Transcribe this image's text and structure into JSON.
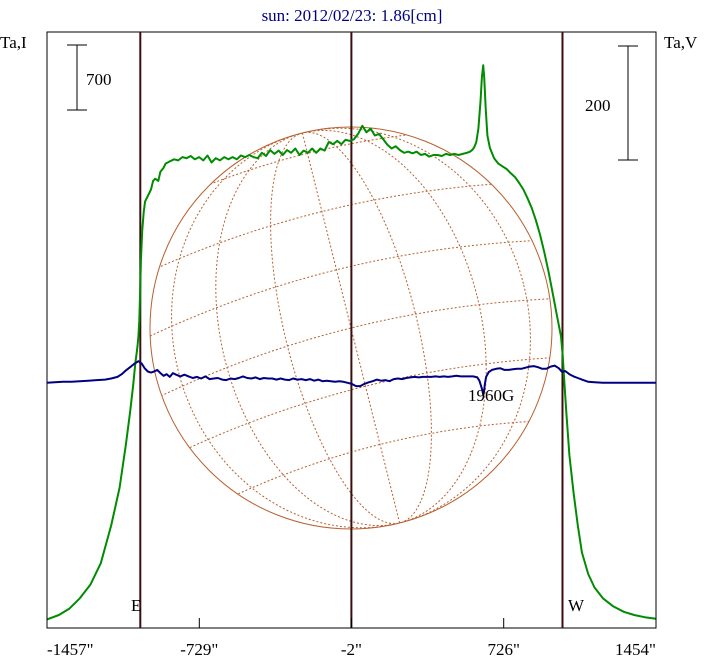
{
  "chart_data": {
    "type": "line",
    "title": "sun: 2012/02/23: 1.86[cm]",
    "left_axis_label": "Ta,I",
    "right_axis_label": "Ta,V",
    "xlim": [
      -1457,
      1454
    ],
    "x_ticks": [
      -1457,
      -729,
      -2,
      726,
      1454
    ],
    "x_tick_labels": [
      "-1457\"",
      "-729\"",
      "-2\"",
      "726\"",
      "1454\""
    ],
    "limb_lines_x": [
      -1011,
      -2,
      1007
    ],
    "limb_labels": [
      "E",
      "W"
    ],
    "scale_bars": [
      {
        "label": "700",
        "side": "left"
      },
      {
        "label": "200",
        "side": "right"
      }
    ],
    "annotations": [
      {
        "text": "1960G",
        "x": 726
      }
    ],
    "colors": {
      "intensity": "#008c00",
      "polarization": "#000080",
      "limb_line": "#3a0e0e",
      "disk": "#b86030",
      "title": "#000080",
      "axis": "#000000"
    },
    "series": [
      {
        "id": "I",
        "points": [
          [
            -1457,
            16
          ],
          [
            -1400,
            24
          ],
          [
            -1350,
            36
          ],
          [
            -1300,
            55
          ],
          [
            -1250,
            80
          ],
          [
            -1200,
            120
          ],
          [
            -1150,
            190
          ],
          [
            -1110,
            260
          ],
          [
            -1080,
            340
          ],
          [
            -1060,
            400
          ],
          [
            -1045,
            450
          ],
          [
            -1035,
            490
          ],
          [
            -1028,
            510
          ],
          [
            -1024,
            524
          ],
          [
            -1020,
            540
          ],
          [
            -1016,
            570
          ],
          [
            -1012,
            620
          ],
          [
            -1008,
            680
          ],
          [
            -1002,
            735
          ],
          [
            -995,
            770
          ],
          [
            -988,
            790
          ],
          [
            -975,
            800
          ],
          [
            -960,
            812
          ],
          [
            -950,
            828
          ],
          [
            -940,
            832
          ],
          [
            -925,
            828
          ],
          [
            -915,
            845
          ],
          [
            -900,
            852
          ],
          [
            -890,
            860
          ],
          [
            -870,
            864
          ],
          [
            -850,
            868
          ],
          [
            -830,
            866
          ],
          [
            -810,
            872
          ],
          [
            -790,
            870
          ],
          [
            -770,
            874
          ],
          [
            -750,
            868
          ],
          [
            -730,
            872
          ],
          [
            -710,
            866
          ],
          [
            -690,
            875
          ],
          [
            -670,
            862
          ],
          [
            -650,
            870
          ],
          [
            -630,
            866
          ],
          [
            -610,
            872
          ],
          [
            -590,
            868
          ],
          [
            -570,
            872
          ],
          [
            -550,
            868
          ],
          [
            -530,
            875
          ],
          [
            -510,
            872
          ],
          [
            -490,
            876
          ],
          [
            -470,
            872
          ],
          [
            -450,
            870
          ],
          [
            -430,
            880
          ],
          [
            -410,
            874
          ],
          [
            -390,
            885
          ],
          [
            -370,
            878
          ],
          [
            -350,
            884
          ],
          [
            -330,
            876
          ],
          [
            -310,
            885
          ],
          [
            -290,
            880
          ],
          [
            -270,
            888
          ],
          [
            -250,
            876
          ],
          [
            -230,
            884
          ],
          [
            -210,
            880
          ],
          [
            -190,
            888
          ],
          [
            -170,
            880
          ],
          [
            -150,
            888
          ],
          [
            -130,
            884
          ],
          [
            -110,
            900
          ],
          [
            -90,
            896
          ],
          [
            -70,
            902
          ],
          [
            -50,
            896
          ],
          [
            -30,
            904
          ],
          [
            -10,
            902
          ],
          [
            10,
            905
          ],
          [
            30,
            915
          ],
          [
            50,
            930
          ],
          [
            70,
            918
          ],
          [
            90,
            925
          ],
          [
            110,
            912
          ],
          [
            130,
            915
          ],
          [
            150,
            905
          ],
          [
            170,
            895
          ],
          [
            190,
            888
          ],
          [
            210,
            892
          ],
          [
            230,
            885
          ],
          [
            250,
            880
          ],
          [
            270,
            882
          ],
          [
            290,
            879
          ],
          [
            310,
            882
          ],
          [
            330,
            876
          ],
          [
            350,
            878
          ],
          [
            370,
            873
          ],
          [
            390,
            876
          ],
          [
            410,
            876
          ],
          [
            430,
            874
          ],
          [
            450,
            878
          ],
          [
            470,
            876
          ],
          [
            490,
            878
          ],
          [
            510,
            876
          ],
          [
            530,
            878
          ],
          [
            550,
            880
          ],
          [
            565,
            882
          ],
          [
            575,
            885
          ],
          [
            585,
            890
          ],
          [
            595,
            900
          ],
          [
            605,
            925
          ],
          [
            615,
            975
          ],
          [
            622,
            1020
          ],
          [
            628,
            1042
          ],
          [
            633,
            1020
          ],
          [
            640,
            962
          ],
          [
            648,
            912
          ],
          [
            660,
            889
          ],
          [
            680,
            870
          ],
          [
            700,
            860
          ],
          [
            720,
            855
          ],
          [
            740,
            850
          ],
          [
            760,
            842
          ],
          [
            780,
            835
          ],
          [
            800,
            824
          ],
          [
            820,
            812
          ],
          [
            840,
            796
          ],
          [
            860,
            778
          ],
          [
            880,
            755
          ],
          [
            900,
            728
          ],
          [
            920,
            696
          ],
          [
            940,
            660
          ],
          [
            960,
            620
          ],
          [
            980,
            580
          ],
          [
            1000,
            540
          ],
          [
            1008,
            505
          ],
          [
            1015,
            460
          ],
          [
            1025,
            400
          ],
          [
            1040,
            320
          ],
          [
            1060,
            250
          ],
          [
            1080,
            190
          ],
          [
            1100,
            140
          ],
          [
            1130,
            100
          ],
          [
            1160,
            75
          ],
          [
            1200,
            55
          ],
          [
            1250,
            40
          ],
          [
            1300,
            30
          ],
          [
            1350,
            24
          ],
          [
            1400,
            20
          ],
          [
            1454,
            17
          ]
        ]
      },
      {
        "id": "V",
        "points": [
          [
            -1457,
            454
          ],
          [
            -1420,
            455
          ],
          [
            -1380,
            456
          ],
          [
            -1340,
            456
          ],
          [
            -1300,
            457
          ],
          [
            -1260,
            458
          ],
          [
            -1220,
            459
          ],
          [
            -1180,
            460
          ],
          [
            -1150,
            462
          ],
          [
            -1120,
            465
          ],
          [
            -1100,
            470
          ],
          [
            -1080,
            477
          ],
          [
            -1060,
            483
          ],
          [
            -1040,
            489
          ],
          [
            -1020,
            494
          ],
          [
            -1005,
            490
          ],
          [
            -990,
            481
          ],
          [
            -975,
            475
          ],
          [
            -960,
            473
          ],
          [
            -945,
            475
          ],
          [
            -930,
            478
          ],
          [
            -915,
            472
          ],
          [
            -900,
            467
          ],
          [
            -885,
            470
          ],
          [
            -870,
            465
          ],
          [
            -855,
            472
          ],
          [
            -840,
            469
          ],
          [
            -820,
            466
          ],
          [
            -800,
            469
          ],
          [
            -780,
            466
          ],
          [
            -760,
            463
          ],
          [
            -740,
            465
          ],
          [
            -720,
            462
          ],
          [
            -700,
            466
          ],
          [
            -680,
            461
          ],
          [
            -660,
            462
          ],
          [
            -640,
            463
          ],
          [
            -620,
            460
          ],
          [
            -600,
            459
          ],
          [
            -580,
            462
          ],
          [
            -560,
            461
          ],
          [
            -540,
            463
          ],
          [
            -520,
            466
          ],
          [
            -500,
            463
          ],
          [
            -480,
            462
          ],
          [
            -460,
            464
          ],
          [
            -440,
            461
          ],
          [
            -420,
            463
          ],
          [
            -400,
            462
          ],
          [
            -380,
            462
          ],
          [
            -360,
            460
          ],
          [
            -340,
            462
          ],
          [
            -320,
            460
          ],
          [
            -300,
            459
          ],
          [
            -280,
            462
          ],
          [
            -260,
            460
          ],
          [
            -240,
            461
          ],
          [
            -220,
            459
          ],
          [
            -200,
            461
          ],
          [
            -180,
            458
          ],
          [
            -160,
            460
          ],
          [
            -140,
            457
          ],
          [
            -120,
            458
          ],
          [
            -100,
            457
          ],
          [
            -80,
            456
          ],
          [
            -60,
            457
          ],
          [
            -40,
            456
          ],
          [
            -20,
            454
          ],
          [
            0,
            452
          ],
          [
            20,
            448
          ],
          [
            40,
            448
          ],
          [
            60,
            452
          ],
          [
            80,
            455
          ],
          [
            100,
            457
          ],
          [
            120,
            460
          ],
          [
            140,
            458
          ],
          [
            160,
            459
          ],
          [
            180,
            457
          ],
          [
            200,
            461
          ],
          [
            220,
            462
          ],
          [
            240,
            461
          ],
          [
            260,
            463
          ],
          [
            280,
            464
          ],
          [
            300,
            465
          ],
          [
            320,
            464
          ],
          [
            340,
            465
          ],
          [
            360,
            465
          ],
          [
            380,
            465
          ],
          [
            400,
            466
          ],
          [
            420,
            465
          ],
          [
            440,
            466
          ],
          [
            460,
            465
          ],
          [
            480,
            466
          ],
          [
            500,
            467
          ],
          [
            520,
            466
          ],
          [
            540,
            466
          ],
          [
            560,
            466
          ],
          [
            580,
            466
          ],
          [
            600,
            464
          ],
          [
            610,
            458
          ],
          [
            618,
            448
          ],
          [
            624,
            440
          ],
          [
            628,
            432
          ],
          [
            632,
            438
          ],
          [
            636,
            452
          ],
          [
            642,
            465
          ],
          [
            655,
            474
          ],
          [
            670,
            478
          ],
          [
            690,
            480
          ],
          [
            710,
            481
          ],
          [
            730,
            478
          ],
          [
            750,
            478
          ],
          [
            770,
            479
          ],
          [
            790,
            480
          ],
          [
            810,
            480
          ],
          [
            830,
            482
          ],
          [
            850,
            484
          ],
          [
            870,
            485
          ],
          [
            890,
            483
          ],
          [
            910,
            480
          ],
          [
            930,
            480
          ],
          [
            950,
            484
          ],
          [
            970,
            486
          ],
          [
            990,
            481
          ],
          [
            1005,
            474
          ],
          [
            1020,
            476
          ],
          [
            1040,
            470
          ],
          [
            1060,
            466
          ],
          [
            1080,
            463
          ],
          [
            1100,
            460
          ],
          [
            1130,
            456
          ],
          [
            1160,
            455
          ],
          [
            1200,
            454
          ],
          [
            1250,
            454
          ],
          [
            1300,
            454
          ],
          [
            1350,
            454
          ],
          [
            1400,
            454
          ],
          [
            1454,
            454
          ]
        ]
      }
    ]
  }
}
